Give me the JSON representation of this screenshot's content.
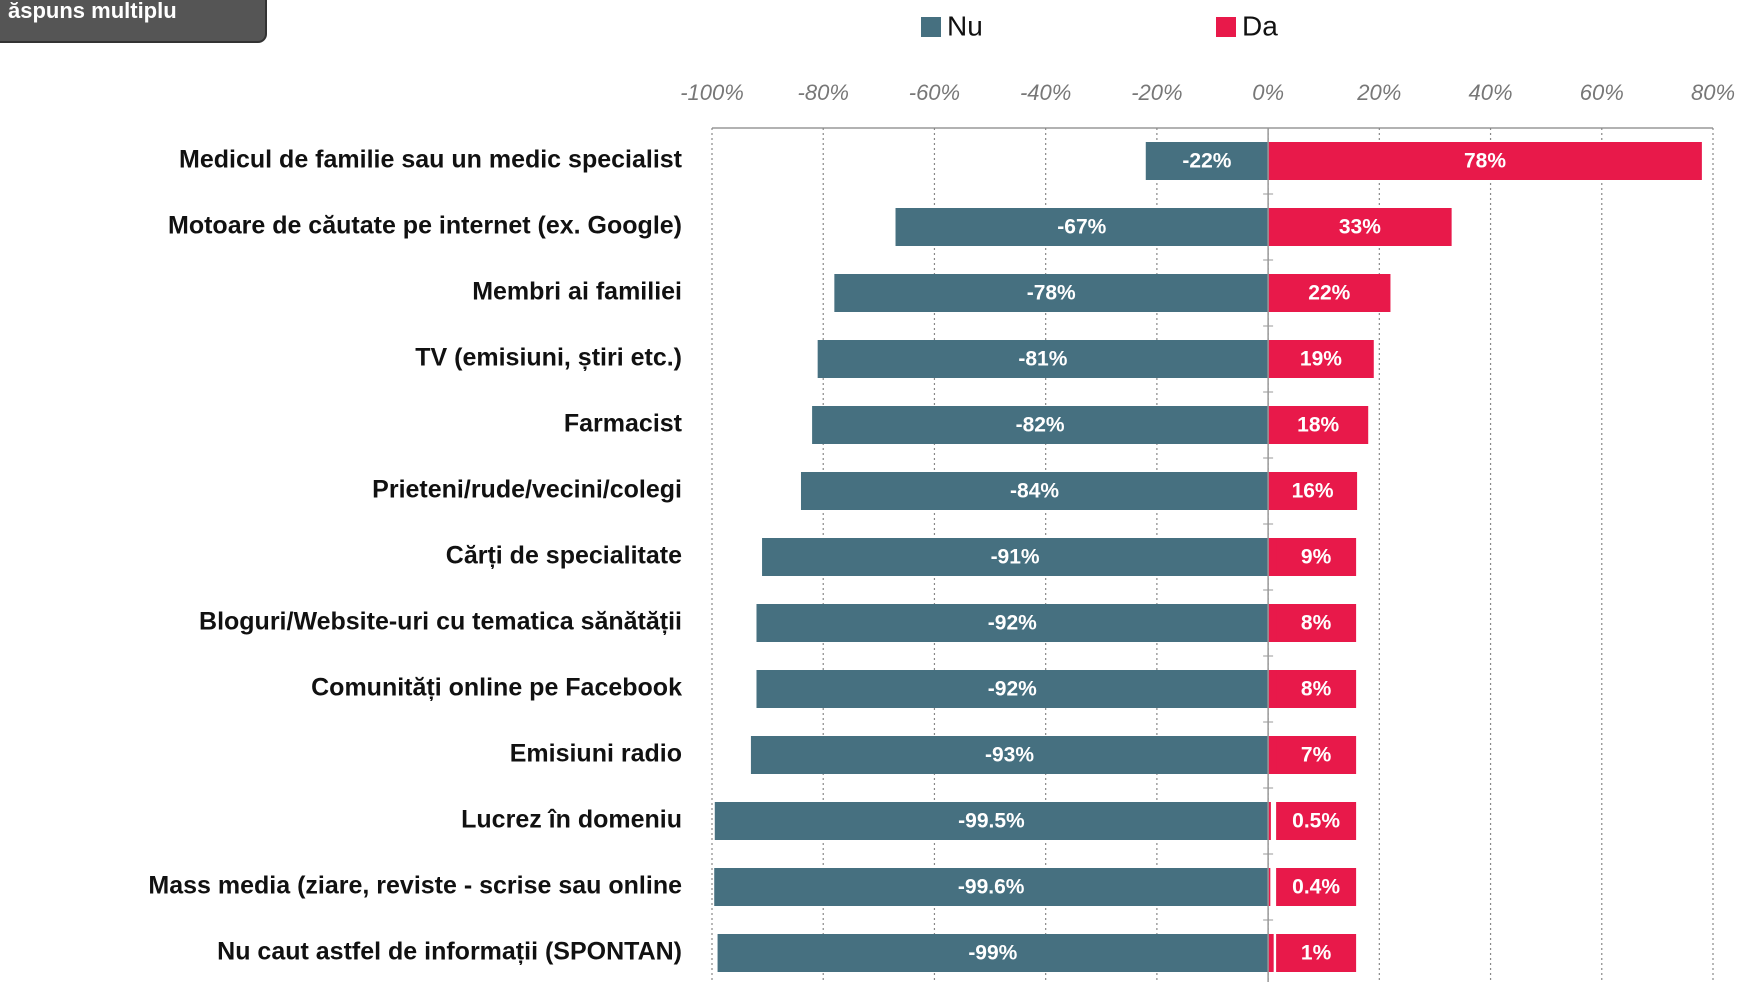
{
  "badge": "ăspuns multiplu",
  "chart_data": {
    "type": "diverging-bar",
    "categories": [
      "Medicul de familie sau un medic specialist",
      "Motoare de căutate pe internet (ex. Google)",
      "Membri ai familiei",
      "TV (emisiuni, știri etc.)",
      "Farmacist",
      "Prieteni/rude/vecini/colegi",
      "Cărți de specialitate",
      "Bloguri/Website-uri cu tematica sănătății",
      "Comunități online pe Facebook",
      "Emisiuni radio",
      "Lucrez în domeniu",
      "Mass media (ziare, reviste - scrise sau online",
      "Nu caut astfel de informații (SPONTAN)"
    ],
    "series": [
      {
        "name": "Nu",
        "color": "#467080",
        "values": [
          -22,
          -67,
          -78,
          -81,
          -82,
          -84,
          -91,
          -92,
          -92,
          -93,
          -99.5,
          -99.6,
          -99
        ],
        "value_labels": [
          "-22%",
          "-67%",
          "-78%",
          "-81%",
          "-82%",
          "-84%",
          "-91%",
          "-92%",
          "-92%",
          "-93%",
          "-99.5%",
          "-99.6%",
          "-99%"
        ]
      },
      {
        "name": "Da",
        "color": "#e8194a",
        "values": [
          78,
          33,
          22,
          19,
          18,
          16,
          9,
          8,
          8,
          7,
          0.5,
          0.4,
          1
        ],
        "value_labels": [
          "78%",
          "33%",
          "22%",
          "19%",
          "18%",
          "16%",
          "9%",
          "8%",
          "8%",
          "7%",
          "0.5%",
          "0.4%",
          "1%"
        ]
      }
    ],
    "xlim": [
      -100,
      80
    ],
    "xticks": [
      {
        "value": -100,
        "label": "-100%"
      },
      {
        "value": -80,
        "label": "-80%"
      },
      {
        "value": -60,
        "label": "-60%"
      },
      {
        "value": -40,
        "label": "-40%"
      },
      {
        "value": -20,
        "label": "-20%"
      },
      {
        "value": 0,
        "label": "0%"
      },
      {
        "value": 20,
        "label": "20%"
      },
      {
        "value": 40,
        "label": "40%"
      },
      {
        "value": 60,
        "label": "60%"
      },
      {
        "value": 80,
        "label": "80%"
      }
    ],
    "grid": true,
    "legend": "top"
  }
}
